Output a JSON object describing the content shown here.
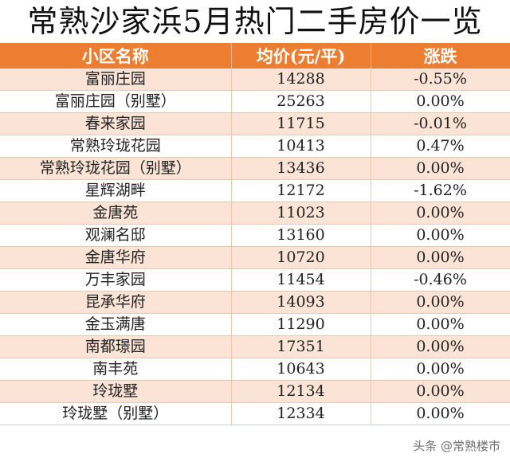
{
  "title": "常熟沙家浜5月热门二手房价一览",
  "headers": [
    "小区名称",
    "均价(元/平)",
    "涨跌"
  ],
  "rows": [
    [
      "富丽庄园",
      "14288",
      "-0.55%"
    ],
    [
      "富丽庄园（别墅）",
      "25263",
      "0.00%"
    ],
    [
      "春来家园",
      "11715",
      "-0.01%"
    ],
    [
      "常熟玲珑花园",
      "10413",
      "0.47%"
    ],
    [
      "常熟玲珑花园（别墅）",
      "13436",
      "0.00%"
    ],
    [
      "星辉湖畔",
      "12172",
      "-1.62%"
    ],
    [
      "金唐苑",
      "11023",
      "0.00%"
    ],
    [
      "观澜名邸",
      "13160",
      "0.00%"
    ],
    [
      "金唐华府",
      "10720",
      "0.00%"
    ],
    [
      "万丰家园",
      "11454",
      "-0.46%"
    ],
    [
      "昆承华府",
      "14093",
      "0.00%"
    ],
    [
      "金玉满唐",
      "11290",
      "0.00%"
    ],
    [
      "南都璟园",
      "17351",
      "0.00%"
    ],
    [
      "南丰苑",
      "10643",
      "0.00%"
    ],
    [
      "玲珑墅",
      "12134",
      "0.00%"
    ],
    [
      "玲珑墅（别墅）",
      "12334",
      "0.00%"
    ]
  ],
  "watermark": "头条 @常熟楼市",
  "colors": {
    "header": "#ED7D31",
    "row_alt": "#FBE4D5"
  }
}
